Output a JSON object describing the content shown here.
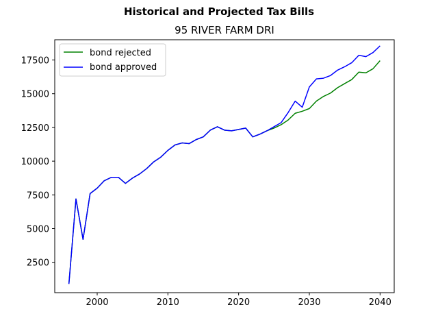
{
  "chart_data": {
    "type": "line",
    "title": "Historical and Projected Tax Bills",
    "subtitle": "95 RIVER FARM DRI",
    "xlabel": "",
    "ylabel": "",
    "xlim": [
      1994,
      2042
    ],
    "ylim": [
      250,
      19000
    ],
    "xticks": [
      2000,
      2010,
      2020,
      2030,
      2040
    ],
    "yticks": [
      2500,
      5000,
      7500,
      10000,
      12500,
      15000,
      17500
    ],
    "grid": false,
    "legend_position": "upper-left",
    "series": [
      {
        "name": "bond rejected",
        "color": "#008000",
        "x": [
          1996,
          1997,
          1998,
          1999,
          2000,
          2001,
          2002,
          2003,
          2004,
          2005,
          2006,
          2007,
          2008,
          2009,
          2010,
          2011,
          2012,
          2013,
          2014,
          2015,
          2016,
          2017,
          2018,
          2019,
          2020,
          2021,
          2022,
          2023,
          2024,
          2025,
          2026,
          2027,
          2028,
          2029,
          2030,
          2031,
          2032,
          2033,
          2034,
          2035,
          2036,
          2037,
          2038,
          2039,
          2040
        ],
        "y": [
          900,
          7200,
          4200,
          7600,
          8000,
          8550,
          8800,
          8800,
          8350,
          8750,
          9050,
          9450,
          9950,
          10300,
          10800,
          11200,
          11350,
          11300,
          11600,
          11800,
          12300,
          12550,
          12300,
          12250,
          12350,
          12450,
          11800,
          12000,
          12250,
          12450,
          12700,
          13050,
          13550,
          13700,
          13900,
          14450,
          14800,
          15050,
          15450,
          15750,
          16050,
          16600,
          16550,
          16850,
          17450
        ]
      },
      {
        "name": "bond approved",
        "color": "#0000ff",
        "x": [
          1996,
          1997,
          1998,
          1999,
          2000,
          2001,
          2002,
          2003,
          2004,
          2005,
          2006,
          2007,
          2008,
          2009,
          2010,
          2011,
          2012,
          2013,
          2014,
          2015,
          2016,
          2017,
          2018,
          2019,
          2020,
          2021,
          2022,
          2023,
          2024,
          2025,
          2026,
          2027,
          2028,
          2029,
          2030,
          2031,
          2032,
          2033,
          2034,
          2035,
          2036,
          2037,
          2038,
          2039,
          2040
        ],
        "y": [
          900,
          7200,
          4200,
          7600,
          8000,
          8550,
          8800,
          8800,
          8350,
          8750,
          9050,
          9450,
          9950,
          10300,
          10800,
          11200,
          11350,
          11300,
          11600,
          11800,
          12300,
          12550,
          12300,
          12250,
          12350,
          12450,
          11800,
          12000,
          12250,
          12550,
          12850,
          13600,
          14450,
          14000,
          15500,
          16100,
          16150,
          16350,
          16750,
          17000,
          17300,
          17850,
          17750,
          18050,
          18550
        ]
      }
    ]
  }
}
